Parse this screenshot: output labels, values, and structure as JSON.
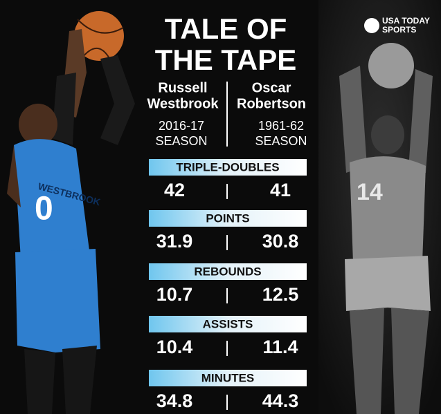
{
  "logo": {
    "line1": "USA TODAY",
    "line2": "SPORTS"
  },
  "title": {
    "line1": "TALE OF",
    "line2": "THE TAPE"
  },
  "players": [
    {
      "first": "Russell",
      "last": "Westbrook",
      "season_year": "2016-17",
      "season_word": "SEASON"
    },
    {
      "first": "Oscar",
      "last": "Robertson",
      "season_year": "1961-62",
      "season_word": "SEASON"
    }
  ],
  "stats": [
    {
      "label": "TRIPLE-DOUBLES",
      "left": "42",
      "right": "41"
    },
    {
      "label": "POINTS",
      "left": "31.9",
      "right": "30.8"
    },
    {
      "label": "REBOUNDS",
      "left": "10.7",
      "right": "12.5"
    },
    {
      "label": "ASSISTS",
      "left": "10.4",
      "right": "11.4"
    },
    {
      "label": "MINUTES",
      "left": "34.8",
      "right": "44.3"
    }
  ]
}
